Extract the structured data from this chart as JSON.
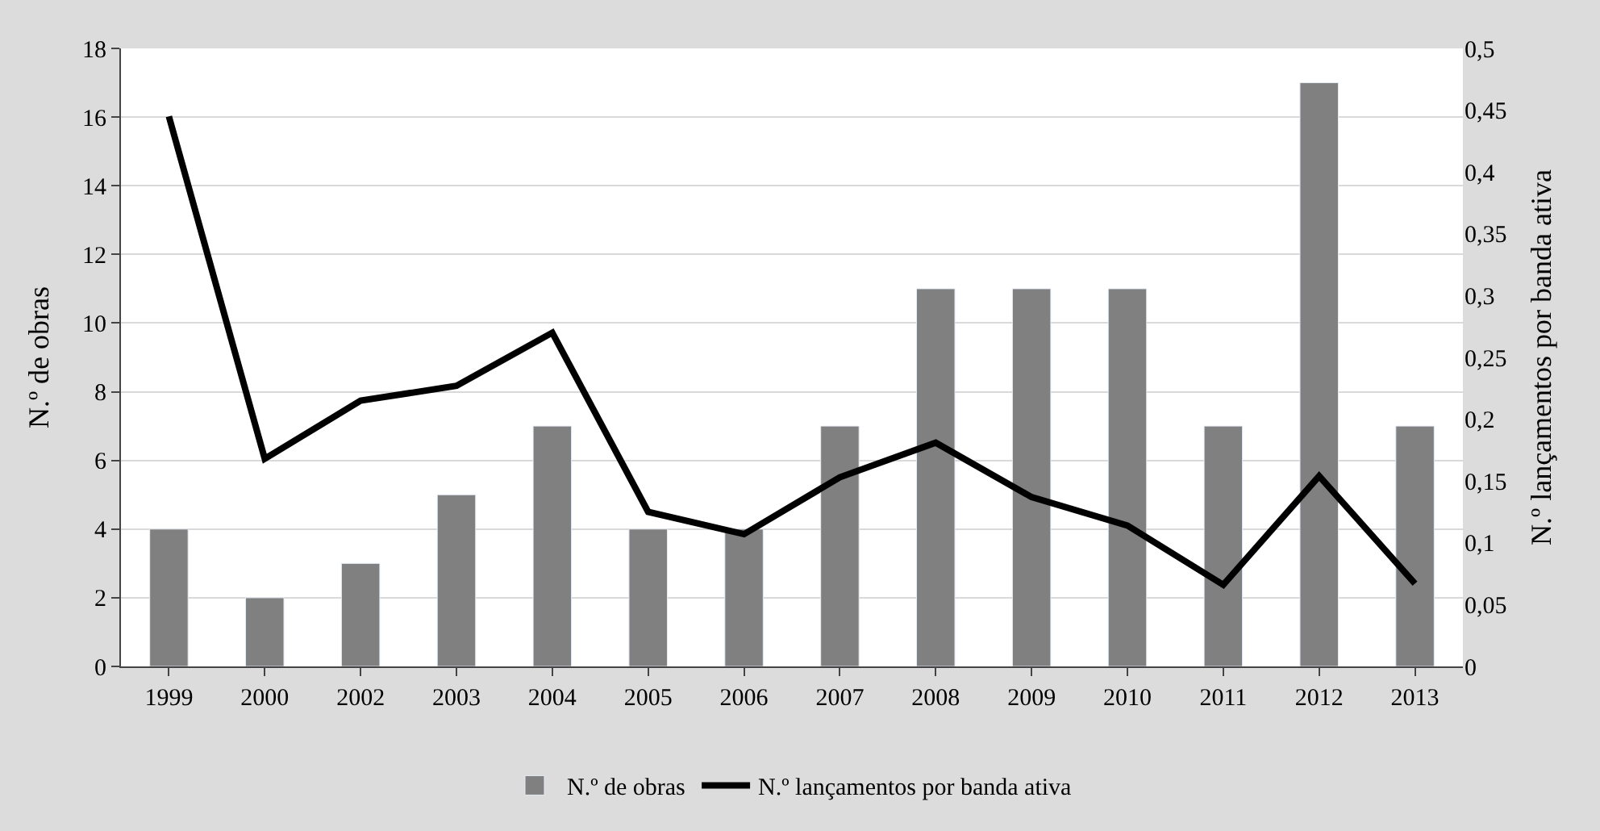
{
  "chart_data": {
    "type": "bar",
    "xlabel": null,
    "ylabel": "N.º de obras",
    "y2label": "N.º lançamentos por banda ativa",
    "categories": [
      "1999",
      "2000",
      "2002",
      "2003",
      "2004",
      "2005",
      "2006",
      "2007",
      "2008",
      "2009",
      "2010",
      "2011",
      "2012",
      "2013"
    ],
    "series": [
      {
        "name": "N.º de obras",
        "color": "#808080",
        "values": [
          4,
          2,
          3,
          5,
          7,
          4,
          4,
          7,
          11,
          11,
          11,
          7,
          17,
          7
        ]
      },
      {
        "name": "N.º lançamentos por banda ativa",
        "type": "line",
        "axis": "y2",
        "color": "#000000",
        "values": [
          0.445,
          0.168,
          0.215,
          0.227,
          0.27,
          0.125,
          0.107,
          0.153,
          0.181,
          0.137,
          0.114,
          0.066,
          0.154,
          0.067
        ]
      }
    ],
    "ylim": [
      0,
      18
    ],
    "yticks": [
      0,
      2,
      4,
      6,
      8,
      10,
      12,
      14,
      16,
      18
    ],
    "y2lim": [
      0,
      0.5
    ],
    "y2ticks": [
      {
        "value": 0,
        "label": "0"
      },
      {
        "value": 0.05,
        "label": "0,05"
      },
      {
        "value": 0.1,
        "label": "0,1"
      },
      {
        "value": 0.15,
        "label": "0,15"
      },
      {
        "value": 0.2,
        "label": "0,2"
      },
      {
        "value": 0.25,
        "label": "0,25"
      },
      {
        "value": 0.3,
        "label": "0,3"
      },
      {
        "value": 0.35,
        "label": "0,35"
      },
      {
        "value": 0.4,
        "label": "0,4"
      },
      {
        "value": 0.45,
        "label": "0,45"
      },
      {
        "value": 0.5,
        "label": "0,5"
      }
    ],
    "grid": "y",
    "legend": "bottom",
    "marker": "none",
    "line_style": "solid"
  }
}
